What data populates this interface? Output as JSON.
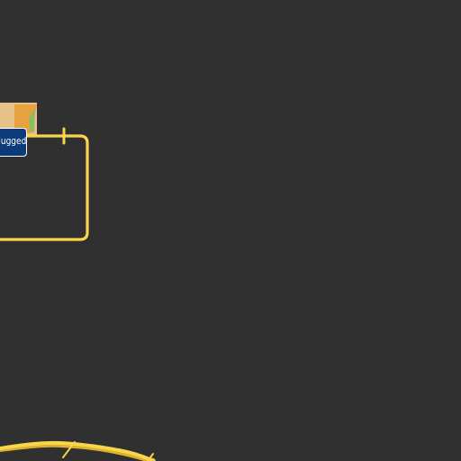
{
  "map": {
    "colors": {
      "background": "#303030",
      "road": "#f8d54a",
      "road_edge": "#dbb12f",
      "poi_tan": "#e8c08a",
      "poi_orange": "#e5a23e",
      "poi_green": "#8bbd63",
      "shield_blue": "#0c3a7a",
      "shield_border": "#ffffff",
      "shield_text": "#ffffff"
    },
    "label": {
      "text": "Plugged",
      "type": "road-shield"
    }
  }
}
